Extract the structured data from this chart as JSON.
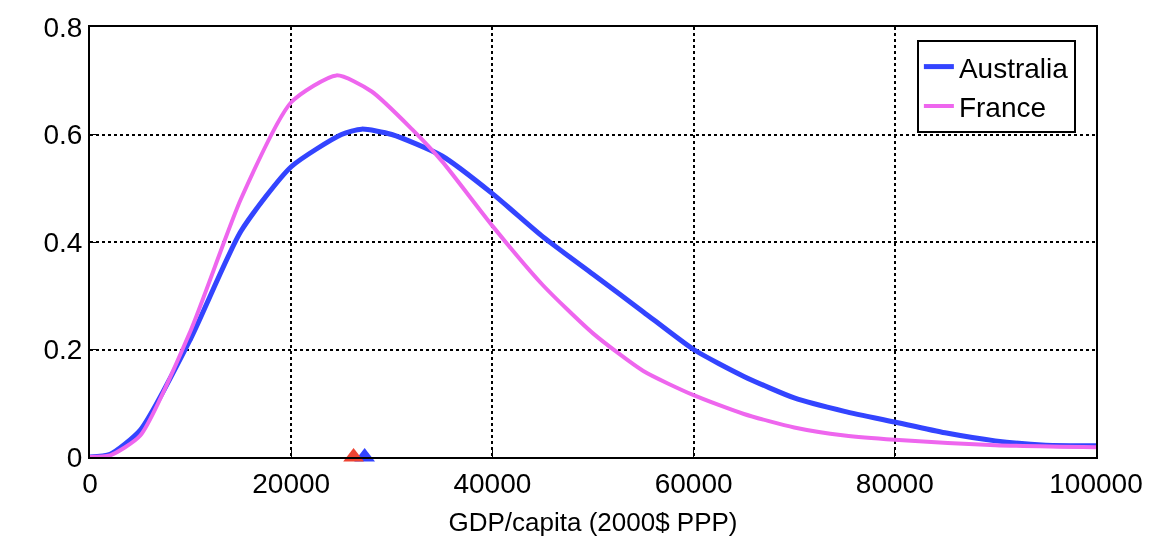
{
  "chart_data": {
    "type": "line",
    "xlabel": "GDP/capita (2000$ PPP)",
    "xlim": [
      0,
      100000
    ],
    "xticks": [
      0,
      20000,
      40000,
      60000,
      80000,
      100000
    ],
    "ylim": [
      0,
      0.8
    ],
    "yticks": [
      0,
      0.2,
      0.4,
      0.6,
      0.8
    ],
    "grid": true,
    "legend": "top right",
    "marker": "none",
    "line_style": "solid",
    "series": [
      {
        "name": "Australia",
        "color": "#3344ff",
        "x": [
          0,
          2000,
          5000,
          10000,
          15000,
          20000,
          25000,
          27000,
          30000,
          35000,
          40000,
          45000,
          50000,
          55000,
          60000,
          65000,
          70000,
          75000,
          80000,
          85000,
          90000,
          95000,
          100000
        ],
        "values": [
          0,
          0.005,
          0.05,
          0.22,
          0.42,
          0.54,
          0.6,
          0.61,
          0.6,
          0.56,
          0.49,
          0.41,
          0.34,
          0.27,
          0.2,
          0.15,
          0.11,
          0.085,
          0.065,
          0.045,
          0.03,
          0.022,
          0.021
        ]
      },
      {
        "name": "France",
        "color": "#ee66ee",
        "x": [
          0,
          2000,
          5000,
          10000,
          15000,
          20000,
          24500,
          28000,
          32000,
          35000,
          40000,
          45000,
          50000,
          55000,
          60000,
          65000,
          70000,
          75000,
          80000,
          90000,
          100000
        ],
        "values": [
          0,
          0.003,
          0.04,
          0.235,
          0.48,
          0.66,
          0.71,
          0.68,
          0.61,
          0.55,
          0.43,
          0.32,
          0.23,
          0.16,
          0.115,
          0.08,
          0.055,
          0.04,
          0.032,
          0.022,
          0.018
        ]
      },
      {
        "type": "scatter",
        "marker": "triangle",
        "color": "#3344ff",
        "x": [
          27300
        ],
        "values": [
          0
        ]
      },
      {
        "type": "scatter",
        "marker": "triangle",
        "color": "#ee4433",
        "x": [
          26200
        ],
        "values": [
          0
        ]
      }
    ]
  }
}
